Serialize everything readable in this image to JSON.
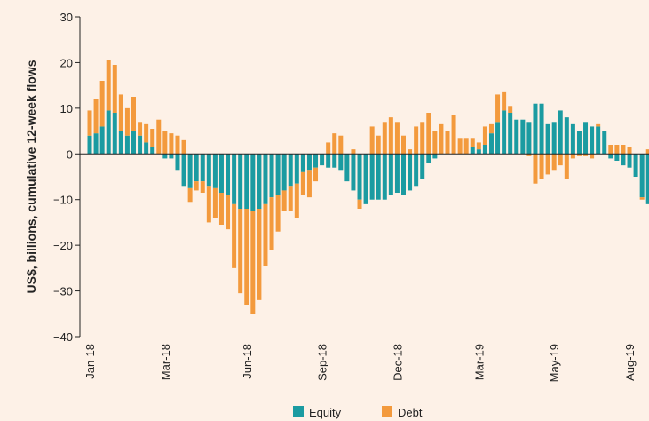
{
  "chart_data": {
    "type": "bar",
    "stacked": true,
    "y_label": "US$, billions, cumulative 12-week flows",
    "categories": [
      "Jan-18",
      null,
      null,
      null,
      null,
      null,
      null,
      null,
      null,
      null,
      null,
      null,
      "Mar-18",
      null,
      null,
      null,
      null,
      null,
      null,
      null,
      null,
      null,
      null,
      null,
      null,
      "Jun-18",
      null,
      null,
      null,
      null,
      null,
      null,
      null,
      null,
      null,
      null,
      null,
      "Sep-18",
      null,
      null,
      null,
      null,
      null,
      null,
      null,
      null,
      null,
      null,
      null,
      "Dec-18",
      null,
      null,
      null,
      null,
      null,
      null,
      null,
      null,
      null,
      null,
      null,
      null,
      "Mar-19",
      null,
      null,
      null,
      null,
      null,
      null,
      null,
      null,
      null,
      null,
      null,
      "May-19",
      null,
      null,
      null,
      null,
      null,
      null,
      null,
      null,
      null,
      null,
      null,
      "Aug-19",
      null,
      null,
      null
    ],
    "series": [
      {
        "name": "Equity",
        "color": "#1b9ba1",
        "values": [
          4,
          4.5,
          6,
          9.5,
          9,
          5,
          4,
          5,
          4,
          2.5,
          1.5,
          0,
          -1,
          -1,
          -3.5,
          -7,
          -7.5,
          -6,
          -6,
          -7,
          -7.5,
          -8.5,
          -9,
          -11,
          -12,
          -12,
          -12.5,
          -12,
          -11,
          -9.5,
          -9,
          -8,
          -7,
          -6.5,
          -4,
          -3.5,
          -3,
          -2.5,
          -3,
          -3,
          -3.5,
          -6,
          -8,
          -10,
          -11,
          -10,
          -10,
          -10,
          -9,
          -8.5,
          -9,
          -8,
          -7,
          -5.5,
          -2,
          -1,
          0,
          0,
          0,
          0,
          0,
          1.5,
          1,
          2,
          4.5,
          7,
          9.5,
          9,
          7.5,
          7.5,
          7,
          11,
          11,
          6.5,
          7,
          9.5,
          8,
          6.5,
          5,
          7,
          6,
          6,
          5,
          -1,
          -1.5,
          -2.5,
          -3,
          -5,
          -9.5,
          -11
        ]
      },
      {
        "name": "Debt",
        "color": "#f39a3d",
        "values": [
          5.5,
          7.5,
          10,
          11,
          10.5,
          8,
          6,
          7.5,
          3,
          4,
          4,
          7.5,
          5,
          4.5,
          4,
          3,
          -3,
          -2,
          -2.5,
          -8,
          -6.5,
          -7,
          -7.5,
          -14,
          -18.5,
          -21,
          -22.5,
          -20,
          -13.5,
          -11.5,
          -8,
          -4.5,
          -5.5,
          -7.5,
          -5,
          -6,
          -3,
          0,
          2.5,
          4.5,
          4,
          0,
          1,
          -2,
          0,
          6,
          4,
          7,
          8,
          7,
          4,
          1,
          6,
          7,
          9,
          5,
          6.5,
          5,
          8.5,
          3.5,
          3.5,
          2,
          1.5,
          4,
          2,
          6,
          4,
          1.5,
          0,
          0,
          -0.5,
          -6.5,
          -5.5,
          -4.5,
          -3.5,
          -2.5,
          -5.5,
          -1,
          -0.5,
          -0.5,
          -1,
          0.5,
          0,
          2,
          2,
          2,
          1.5,
          0,
          -0.5,
          1
        ]
      }
    ],
    "ylim": [
      -40,
      30
    ],
    "yticks": [
      {
        "value": -40,
        "label": "−40"
      },
      {
        "value": -30,
        "label": "−30"
      },
      {
        "value": -20,
        "label": "−20"
      },
      {
        "value": -10,
        "label": "−10"
      },
      0,
      10,
      20,
      30
    ],
    "legend": "bottom"
  }
}
